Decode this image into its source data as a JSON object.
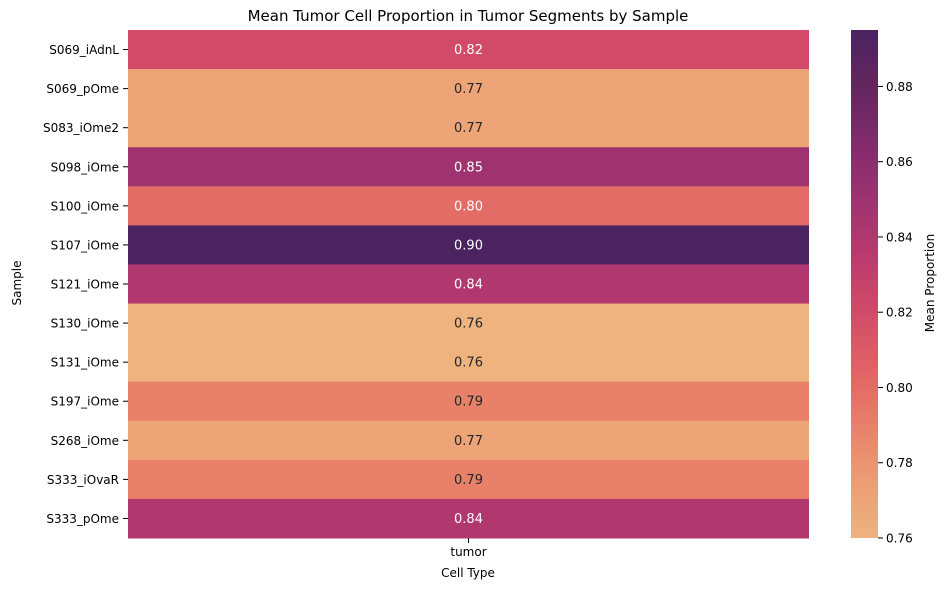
{
  "chart_data": {
    "type": "heatmap",
    "title": "Mean Tumor Cell Proportion in Tumor Segments by Sample",
    "xlabel": "Cell Type",
    "ylabel": "Sample",
    "columns": [
      "tumor"
    ],
    "rows": [
      "S069_iAdnL",
      "S069_pOme",
      "S083_iOme2",
      "S098_iOme",
      "S100_iOme",
      "S107_iOme",
      "S121_iOme",
      "S130_iOme",
      "S131_iOme",
      "S197_iOme",
      "S268_iOme",
      "S333_iOvaR",
      "S333_pOme"
    ],
    "values": [
      0.82,
      0.77,
      0.77,
      0.85,
      0.8,
      0.9,
      0.84,
      0.76,
      0.76,
      0.79,
      0.77,
      0.79,
      0.84
    ],
    "annotations": [
      "0.82",
      "0.77",
      "0.77",
      "0.85",
      "0.80",
      "0.90",
      "0.84",
      "0.76",
      "0.76",
      "0.79",
      "0.77",
      "0.79",
      "0.84"
    ],
    "colorbar": {
      "label": "Mean Proportion",
      "range": [
        0.76,
        0.895
      ],
      "ticks": [
        0.76,
        0.78,
        0.8,
        0.82,
        0.84,
        0.86,
        0.88
      ],
      "tick_labels": [
        "0.76",
        "0.78",
        "0.80",
        "0.82",
        "0.84",
        "0.86",
        "0.88"
      ],
      "colormap": "flare",
      "colors": [
        "#eeb37e",
        "#ec9d74",
        "#e8806a",
        "#e16265",
        "#d14b68",
        "#b93a6e",
        "#9e3370",
        "#822a6e",
        "#63265f",
        "#4b2360"
      ]
    }
  }
}
